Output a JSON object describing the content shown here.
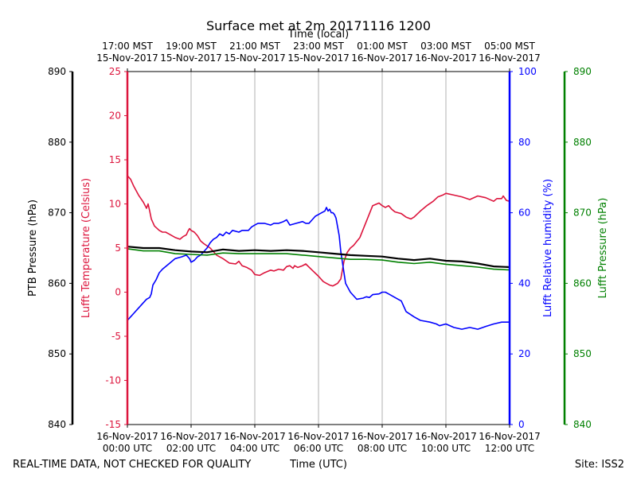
{
  "chart_data": {
    "type": "line",
    "title": "Surface met at 2m 20171116 1200",
    "top_axis_title": "Time (local)",
    "bottom_axis_title": "Time (UTC)",
    "footer_left": "REAL-TIME DATA, NOT CHECKED FOR QUALITY",
    "footer_right": "Site: ISS2",
    "xlim": [
      0,
      12
    ],
    "x_ticks": [
      0,
      2,
      4,
      6,
      8,
      10,
      12
    ],
    "x_labels_utc": [
      [
        "16-Nov-2017",
        "00:00 UTC"
      ],
      [
        "16-Nov-2017",
        "02:00 UTC"
      ],
      [
        "16-Nov-2017",
        "04:00 UTC"
      ],
      [
        "16-Nov-2017",
        "06:00 UTC"
      ],
      [
        "16-Nov-2017",
        "08:00 UTC"
      ],
      [
        "16-Nov-2017",
        "10:00 UTC"
      ],
      [
        "16-Nov-2017",
        "12:00 UTC"
      ]
    ],
    "x_labels_local": [
      [
        "17:00 MST",
        "15-Nov-2017"
      ],
      [
        "19:00 MST",
        "15-Nov-2017"
      ],
      [
        "21:00 MST",
        "15-Nov-2017"
      ],
      [
        "23:00 MST",
        "15-Nov-2017"
      ],
      [
        "01:00 MST",
        "16-Nov-2017"
      ],
      [
        "03:00 MST",
        "16-Nov-2017"
      ],
      [
        "05:00 MST",
        "16-Nov-2017"
      ]
    ],
    "axes": {
      "ptb": {
        "label": "PTB Pressure (hPa)",
        "ylim": [
          840,
          890
        ],
        "ticks": [
          840,
          850,
          860,
          870,
          880,
          890
        ],
        "color": "#000000"
      },
      "temp": {
        "label": "Lufft Temperature (Celsius)",
        "ylim": [
          -15,
          25
        ],
        "ticks": [
          -15,
          -10,
          -5,
          0,
          5,
          10,
          15,
          20,
          25
        ],
        "color": "#dc143c"
      },
      "rh": {
        "label": "Lufft Relative humidity (%)",
        "ylim": [
          0,
          100
        ],
        "ticks": [
          0,
          20,
          40,
          60,
          80,
          100
        ],
        "color": "#0000ff"
      },
      "lufft_p": {
        "label": "Lufft Pressure (hPa)",
        "ylim": [
          840,
          890
        ],
        "ticks": [
          840,
          850,
          860,
          870,
          880,
          890
        ],
        "color": "#008000"
      }
    },
    "series": [
      {
        "name": "Lufft Temperature",
        "axis": "temp",
        "color": "#dc143c",
        "x": [
          0,
          0.1,
          0.2,
          0.35,
          0.5,
          0.6,
          0.65,
          0.7,
          0.75,
          0.85,
          1.0,
          1.1,
          1.2,
          1.3,
          1.5,
          1.65,
          1.75,
          1.85,
          1.9,
          1.95,
          2.0,
          2.1,
          2.2,
          2.3,
          2.4,
          2.6,
          2.8,
          3.0,
          3.2,
          3.4,
          3.5,
          3.6,
          3.75,
          3.9,
          4.0,
          4.15,
          4.3,
          4.5,
          4.6,
          4.75,
          4.9,
          5.0,
          5.1,
          5.2,
          5.25,
          5.35,
          5.5,
          5.6,
          5.8,
          6.0,
          6.15,
          6.25,
          6.35,
          6.45,
          6.55,
          6.6,
          6.7,
          6.8,
          6.9,
          7.0,
          7.1,
          7.3,
          7.5,
          7.7,
          7.9,
          8.0,
          8.1,
          8.2,
          8.3,
          8.4,
          8.5,
          8.6,
          8.75,
          8.9,
          9.0,
          9.2,
          9.4,
          9.6,
          9.75,
          9.9,
          10.0,
          10.25,
          10.5,
          10.75,
          11.0,
          11.25,
          11.5,
          11.6,
          11.75,
          11.8,
          11.9,
          12.0
        ],
        "values": [
          13.2,
          12.8,
          12.0,
          11.0,
          10.2,
          9.5,
          10.0,
          9.2,
          8.3,
          7.5,
          7.0,
          6.8,
          6.8,
          6.6,
          6.2,
          6.0,
          6.3,
          6.5,
          6.9,
          7.2,
          7.0,
          6.8,
          6.4,
          5.8,
          5.5,
          5.0,
          4.2,
          3.8,
          3.3,
          3.2,
          3.5,
          3.0,
          2.8,
          2.5,
          2.0,
          1.9,
          2.2,
          2.5,
          2.4,
          2.6,
          2.5,
          2.9,
          3.0,
          2.7,
          3.0,
          2.8,
          3.0,
          3.2,
          2.5,
          1.8,
          1.2,
          1.0,
          0.8,
          0.7,
          0.9,
          1.0,
          1.5,
          3.5,
          4.5,
          5.0,
          5.3,
          6.2,
          8.0,
          9.8,
          10.1,
          9.8,
          9.6,
          9.8,
          9.4,
          9.1,
          9.0,
          8.9,
          8.5,
          8.3,
          8.5,
          9.2,
          9.8,
          10.3,
          10.8,
          11.0,
          11.2,
          11.0,
          10.8,
          10.5,
          10.9,
          10.7,
          10.3,
          10.6,
          10.6,
          10.9,
          10.4,
          10.3
        ]
      },
      {
        "name": "Lufft Relative humidity",
        "axis": "rh",
        "color": "#0000ff",
        "x": [
          0,
          0.1,
          0.2,
          0.3,
          0.5,
          0.6,
          0.7,
          0.75,
          0.8,
          0.9,
          1.0,
          1.1,
          1.3,
          1.5,
          1.7,
          1.85,
          1.9,
          1.95,
          2.0,
          2.1,
          2.2,
          2.3,
          2.5,
          2.6,
          2.7,
          2.8,
          2.9,
          3.0,
          3.1,
          3.2,
          3.3,
          3.5,
          3.6,
          3.7,
          3.8,
          3.9,
          4.0,
          4.1,
          4.3,
          4.5,
          4.6,
          4.75,
          4.9,
          5.0,
          5.1,
          5.3,
          5.5,
          5.6,
          5.7,
          5.8,
          5.9,
          6.0,
          6.1,
          6.2,
          6.25,
          6.3,
          6.35,
          6.4,
          6.45,
          6.5,
          6.55,
          6.6,
          6.65,
          6.7,
          6.75,
          6.85,
          7.0,
          7.2,
          7.4,
          7.5,
          7.6,
          7.7,
          7.9,
          8.0,
          8.1,
          8.2,
          8.3,
          8.5,
          8.6,
          8.75,
          9.0,
          9.2,
          9.5,
          9.7,
          9.8,
          10.0,
          10.25,
          10.5,
          10.75,
          11.0,
          11.25,
          11.5,
          11.75,
          11.9,
          12.0
        ],
        "values": [
          29.5,
          30.5,
          31.5,
          32.5,
          34.5,
          35.5,
          36.0,
          37.0,
          39.5,
          41.0,
          43.0,
          44.0,
          45.5,
          47.0,
          47.5,
          48.0,
          47.5,
          47.0,
          46.0,
          46.5,
          47.5,
          48.0,
          50.0,
          51.5,
          52.5,
          53.0,
          54.0,
          53.5,
          54.5,
          54.0,
          55.0,
          54.5,
          55.0,
          55.0,
          55.0,
          56.0,
          56.5,
          57.0,
          57.0,
          56.5,
          57.0,
          57.0,
          57.5,
          58.0,
          56.5,
          57.0,
          57.5,
          57.0,
          57.0,
          58.0,
          59.0,
          59.5,
          60.0,
          60.5,
          61.5,
          60.5,
          61.0,
          60.0,
          60.0,
          59.5,
          58.5,
          56.0,
          53.5,
          49.0,
          46.0,
          40.0,
          37.5,
          35.5,
          35.8,
          36.2,
          36.0,
          36.8,
          37.0,
          37.5,
          37.5,
          37.0,
          36.5,
          35.5,
          35.0,
          32.0,
          30.5,
          29.5,
          29.0,
          28.5,
          28.0,
          28.5,
          27.5,
          27.0,
          27.5,
          27.0,
          27.8,
          28.5,
          29.0,
          29.0,
          29.0
        ]
      },
      {
        "name": "PTB Pressure",
        "axis": "ptb",
        "color": "#000000",
        "x": [
          0,
          0.5,
          1.0,
          1.5,
          2.0,
          2.5,
          3.0,
          3.5,
          4.0,
          4.5,
          5.0,
          5.5,
          6.0,
          6.5,
          7.0,
          7.5,
          8.0,
          8.5,
          9.0,
          9.5,
          10.0,
          10.5,
          11.0,
          11.5,
          12.0
        ],
        "values": [
          865.2,
          865.0,
          865.0,
          864.7,
          864.5,
          864.4,
          864.8,
          864.6,
          864.7,
          864.6,
          864.7,
          864.6,
          864.4,
          864.2,
          864.0,
          863.9,
          863.8,
          863.5,
          863.3,
          863.5,
          863.2,
          863.1,
          862.8,
          862.4,
          862.3
        ]
      },
      {
        "name": "Lufft Pressure",
        "axis": "lufft_p",
        "color": "#008000",
        "x": [
          0,
          0.5,
          1.0,
          1.5,
          2.0,
          2.5,
          3.0,
          3.5,
          4.0,
          4.5,
          5.0,
          5.5,
          6.0,
          6.5,
          7.0,
          7.5,
          8.0,
          8.5,
          9.0,
          9.5,
          10.0,
          10.5,
          11.0,
          11.5,
          12.0
        ],
        "values": [
          864.9,
          864.6,
          864.6,
          864.2,
          864.1,
          864.0,
          864.3,
          864.2,
          864.2,
          864.2,
          864.2,
          864.0,
          863.8,
          863.6,
          863.4,
          863.4,
          863.3,
          863.0,
          862.8,
          863.0,
          862.7,
          862.5,
          862.3,
          862.0,
          861.9
        ]
      }
    ]
  }
}
